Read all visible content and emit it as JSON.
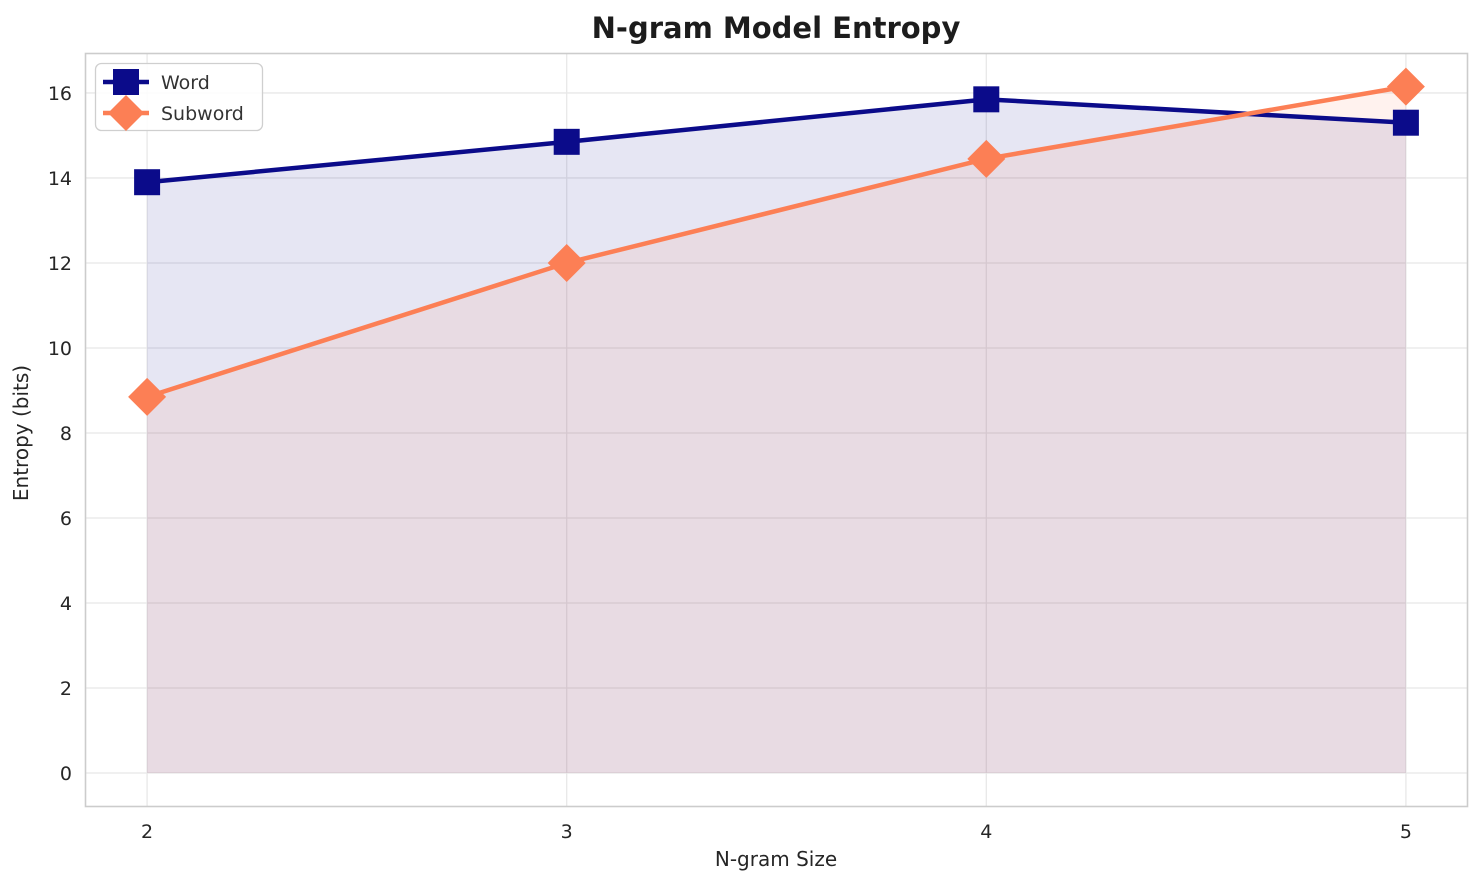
{
  "chart_data": {
    "type": "line",
    "title": "N-gram Model Entropy",
    "xlabel": "N-gram Size",
    "ylabel": "Entropy (bits)",
    "x": [
      2,
      3,
      4,
      5
    ],
    "series": [
      {
        "name": "Word",
        "values": [
          13.9,
          14.85,
          15.85,
          15.3
        ],
        "color": "#0b0b8a",
        "marker": "square",
        "fill_opacity": 0.1,
        "line_width": 4.5
      },
      {
        "name": "Subword",
        "values": [
          8.85,
          12.0,
          14.45,
          16.15
        ],
        "color": "#fc7f55",
        "marker": "diamond",
        "fill_opacity": 0.1,
        "line_width": 4.5
      }
    ],
    "xticks": [
      2,
      3,
      4,
      5
    ],
    "yticks": [
      0,
      2,
      4,
      6,
      8,
      10,
      12,
      14,
      16
    ],
    "xlim": [
      1.852,
      5.148
    ],
    "ylim": [
      -0.8,
      16.94
    ],
    "fill_baseline": 0,
    "grid": true,
    "legend_position": "upper-left",
    "colors": {
      "grid": "#e8e8e8",
      "spine": "#cccccc",
      "title_text": "#1c1c1c",
      "tick_text": "#262626",
      "label_text": "#262626",
      "legend_text": "#333333",
      "legend_border": "#cfcfcf",
      "legend_bg": "#ffffff"
    }
  }
}
